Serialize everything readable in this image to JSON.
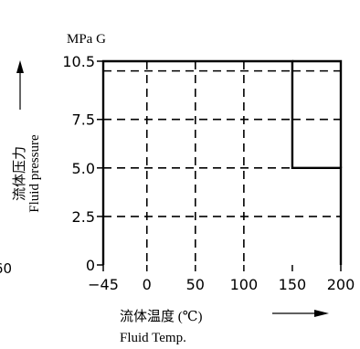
{
  "chart_data": {
    "type": "area",
    "title": "",
    "unit_label": "MPa G",
    "ylabel_cn": "流体压力",
    "ylabel_en": "Fluid pressure",
    "xlabel_cn": "流体温度 (℃)",
    "xlabel_en": "Fluid Temp.",
    "left_edge_tick": "60",
    "xlim": [
      -45,
      200
    ],
    "ylim": [
      0,
      10.5
    ],
    "x_ticks": [
      -45,
      0,
      50,
      100,
      150,
      200
    ],
    "x_tick_labels": [
      "−45",
      "0",
      "50",
      "100",
      "150",
      "200"
    ],
    "y_ticks": [
      0,
      2.5,
      5.0,
      7.5,
      10.5
    ],
    "y_tick_labels": [
      "0",
      "2.5",
      "5.0",
      "7.5",
      "10.5"
    ],
    "grid": true,
    "grid_x": [
      0,
      50,
      100
    ],
    "grid_y": [
      2.5,
      5.0,
      7.5,
      10.0
    ],
    "region": {
      "name": "",
      "points": [
        [
          -45,
          0
        ],
        [
          -45,
          10.5
        ],
        [
          150,
          10.5
        ],
        [
          150,
          5.0
        ],
        [
          200,
          5.0
        ],
        [
          200,
          0
        ]
      ]
    }
  }
}
